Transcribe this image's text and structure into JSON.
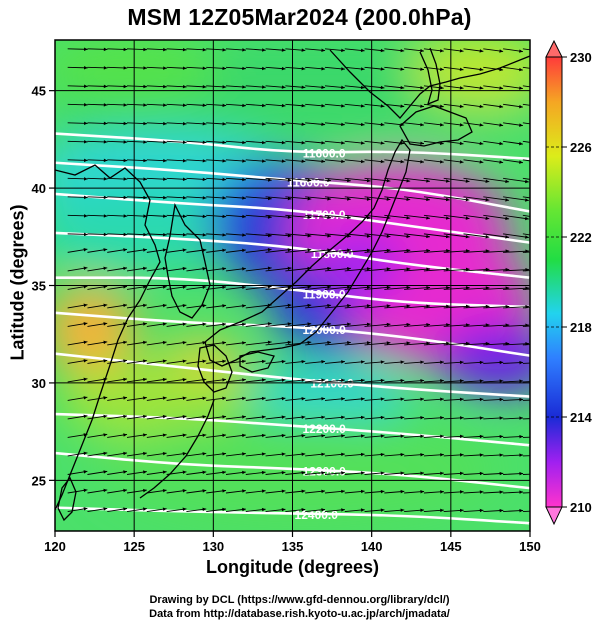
{
  "title": "MSM 12Z05Mar2024 (200.0hPa)",
  "xlabel": "Longitude (degrees)",
  "ylabel": "Latitude  (degrees)",
  "credit_line1": "Drawing by DCL (https://www.gfd-dennou.org/library/dcl/)",
  "credit_line2": "Data from http://database.rish.kyoto-u.ac.jp/arch/jmadata/",
  "chart_data": {
    "type": "heatmap",
    "x_range": [
      120,
      150
    ],
    "y_range": [
      22.4,
      47.6
    ],
    "x_ticks": [
      120,
      125,
      130,
      135,
      140,
      145,
      150
    ],
    "y_ticks": [
      25,
      30,
      35,
      40,
      45
    ],
    "colorbar": {
      "min": 210,
      "max": 230,
      "ticks": [
        210,
        214,
        218,
        222,
        226,
        230
      ],
      "colors": [
        "#ff33cc",
        "#a020f0",
        "#1a2bd6",
        "#2f7fff",
        "#22d3ee",
        "#22dd44",
        "#66e633",
        "#dcec1a",
        "#f5a623",
        "#ff3b3b"
      ]
    },
    "contours": [
      {
        "label": "11600.0",
        "lat_at_lon": [
          [
            120,
            42.8
          ],
          [
            128,
            42.4
          ],
          [
            135,
            41.8
          ],
          [
            142,
            41.9
          ],
          [
            150,
            41.5
          ]
        ]
      },
      {
        "label": "11600.0",
        "lat_at_lon": [
          [
            120,
            41.3
          ],
          [
            128,
            40.9
          ],
          [
            135,
            40.4
          ],
          [
            142,
            40.0
          ],
          [
            150,
            38.8
          ]
        ]
      },
      {
        "label": "11700.0",
        "lat_at_lon": [
          [
            120,
            39.7
          ],
          [
            128,
            39.2
          ],
          [
            135,
            38.9
          ],
          [
            142,
            38.1
          ],
          [
            150,
            37.2
          ]
        ]
      },
      {
        "label": "11800.0",
        "lat_at_lon": [
          [
            120,
            37.7
          ],
          [
            128,
            37.4
          ],
          [
            135,
            37.0
          ],
          [
            142,
            36.1
          ],
          [
            150,
            35.4
          ]
        ]
      },
      {
        "label": "11900.0",
        "lat_at_lon": [
          [
            120,
            35.4
          ],
          [
            128,
            35.4
          ],
          [
            135,
            34.8
          ],
          [
            142,
            34.1
          ],
          [
            150,
            33.9
          ]
        ]
      },
      {
        "label": "12000.0",
        "lat_at_lon": [
          [
            120,
            33.6
          ],
          [
            128,
            33.1
          ],
          [
            135,
            32.9
          ],
          [
            142,
            32.4
          ],
          [
            150,
            31.4
          ]
        ]
      },
      {
        "label": "12100.0",
        "lat_at_lon": [
          [
            120,
            31.5
          ],
          [
            128,
            30.8
          ],
          [
            135,
            30.2
          ],
          [
            142,
            29.7
          ],
          [
            150,
            29.3
          ]
        ]
      },
      {
        "label": "12200.0",
        "lat_at_lon": [
          [
            120,
            28.4
          ],
          [
            128,
            28.2
          ],
          [
            135,
            27.8
          ],
          [
            142,
            27.4
          ],
          [
            150,
            26.8
          ]
        ]
      },
      {
        "label": "12300.0",
        "lat_at_lon": [
          [
            120,
            26.4
          ],
          [
            128,
            25.8
          ],
          [
            135,
            25.6
          ],
          [
            142,
            25.3
          ],
          [
            150,
            24.6
          ]
        ]
      },
      {
        "label": "12400.0",
        "lat_at_lon": [
          [
            120,
            23.6
          ],
          [
            128,
            23.4
          ],
          [
            135,
            23.3
          ],
          [
            142,
            23.2
          ],
          [
            150,
            22.8
          ]
        ]
      }
    ],
    "grid": true
  }
}
